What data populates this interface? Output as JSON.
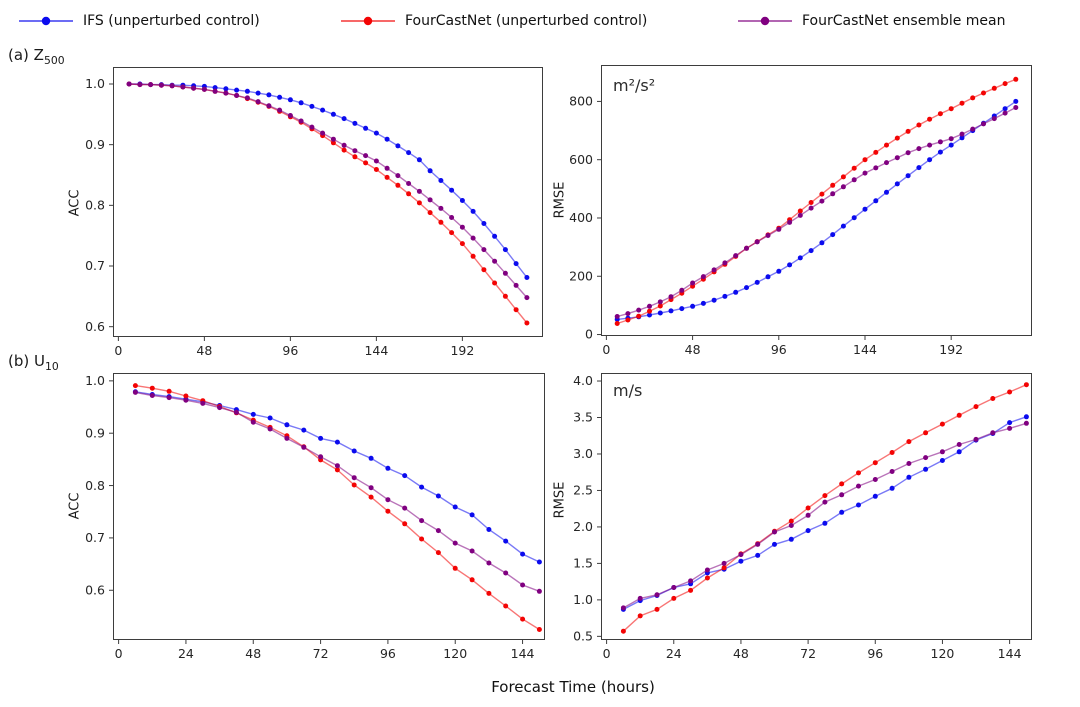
{
  "legend": {
    "items": [
      {
        "label": "IFS (unperturbed control)",
        "color": "#0b0bee"
      },
      {
        "label": "FourCastNet (unperturbed control)",
        "color": "#f30404"
      },
      {
        "label": "FourCastNet ensemble mean",
        "color": "#800080"
      }
    ]
  },
  "chart_data": {
    "type": "line",
    "xlabel": "Forecast Time (hours)",
    "legend_position": "top",
    "grid": false,
    "marker_interval_hours": 6,
    "panels": [
      {
        "id": "z500-acc",
        "panel_label": {
          "text": "(a) Z",
          "sub": "500"
        },
        "ylabel": "ACC",
        "annotation": "",
        "xlim": [
          -3,
          237
        ],
        "ylim": [
          0.583,
          1.028
        ],
        "x_tick_values": [
          0,
          48,
          96,
          144,
          192
        ],
        "x_tick_labels": [
          "0",
          "48",
          "96",
          "144",
          "192"
        ],
        "y_tick_values": [
          0.6,
          0.7,
          0.8,
          0.9,
          1.0
        ],
        "y_tick_labels": [
          "0.6",
          "0.7",
          "0.8",
          "0.9",
          "1.0"
        ],
        "x": [
          6,
          12,
          18,
          24,
          30,
          36,
          42,
          48,
          54,
          60,
          66,
          72,
          78,
          84,
          90,
          96,
          102,
          108,
          114,
          120,
          126,
          132,
          138,
          144,
          150,
          156,
          162,
          168,
          174,
          180,
          186,
          192,
          198,
          204,
          210,
          216,
          222,
          228
        ],
        "series": [
          {
            "id": "ifs",
            "name": "IFS (unperturbed control)",
            "color": "#0b0bee",
            "values": [
              1.0,
              1.0,
              0.999,
              0.999,
              0.998,
              0.998,
              0.997,
              0.996,
              0.994,
              0.992,
              0.99,
              0.988,
              0.985,
              0.982,
              0.978,
              0.974,
              0.969,
              0.963,
              0.957,
              0.95,
              0.943,
              0.935,
              0.927,
              0.919,
              0.909,
              0.898,
              0.887,
              0.875,
              0.857,
              0.841,
              0.825,
              0.808,
              0.79,
              0.77,
              0.749,
              0.727,
              0.704,
              0.681
            ]
          },
          {
            "id": "fourcastnet",
            "name": "FourCastNet (unperturbed control)",
            "color": "#f30404",
            "values": [
              1.0,
              0.999,
              0.999,
              0.998,
              0.997,
              0.995,
              0.993,
              0.991,
              0.988,
              0.985,
              0.981,
              0.976,
              0.97,
              0.963,
              0.955,
              0.946,
              0.937,
              0.926,
              0.915,
              0.903,
              0.891,
              0.88,
              0.87,
              0.859,
              0.846,
              0.833,
              0.819,
              0.804,
              0.788,
              0.772,
              0.755,
              0.737,
              0.716,
              0.694,
              0.672,
              0.65,
              0.628,
              0.606
            ]
          },
          {
            "id": "ensemble-mean",
            "name": "FourCastNet ensemble mean",
            "color": "#800080",
            "values": [
              1.0,
              0.999,
              0.999,
              0.998,
              0.997,
              0.995,
              0.993,
              0.991,
              0.988,
              0.985,
              0.981,
              0.977,
              0.971,
              0.964,
              0.957,
              0.948,
              0.939,
              0.929,
              0.919,
              0.909,
              0.899,
              0.89,
              0.882,
              0.873,
              0.861,
              0.849,
              0.836,
              0.823,
              0.809,
              0.795,
              0.78,
              0.764,
              0.746,
              0.727,
              0.708,
              0.688,
              0.668,
              0.648
            ]
          }
        ]
      },
      {
        "id": "z500-rmse",
        "panel_label": {
          "text": "",
          "sub": ""
        },
        "ylabel": "RMSE",
        "annotation": "m²/s²",
        "xlim": [
          -3,
          237
        ],
        "ylim": [
          -5,
          925
        ],
        "x_tick_values": [
          0,
          48,
          96,
          144,
          192
        ],
        "x_tick_labels": [
          "0",
          "48",
          "96",
          "144",
          "192"
        ],
        "y_tick_values": [
          0,
          200,
          400,
          600,
          800
        ],
        "y_tick_labels": [
          "0",
          "200",
          "400",
          "600",
          "800"
        ],
        "x": [
          6,
          12,
          18,
          24,
          30,
          36,
          42,
          48,
          54,
          60,
          66,
          72,
          78,
          84,
          90,
          96,
          102,
          108,
          114,
          120,
          126,
          132,
          138,
          144,
          150,
          156,
          162,
          168,
          174,
          180,
          186,
          192,
          198,
          204,
          210,
          216,
          222,
          228
        ],
        "series": [
          {
            "id": "ifs",
            "name": "IFS (unperturbed control)",
            "color": "#0b0bee",
            "values": [
              52,
              56,
              61,
              67,
              74,
              81,
              89,
              97,
              107,
              118,
              131,
              145,
              161,
              179,
              198,
              217,
              239,
              263,
              288,
              315,
              343,
              372,
              401,
              430,
              459,
              488,
              517,
              545,
              573,
              600,
              626,
              650,
              675,
              700,
              725,
              750,
              775,
              800
            ]
          },
          {
            "id": "fourcastnet",
            "name": "FourCastNet (unperturbed control)",
            "color": "#f30404",
            "values": [
              38,
              50,
              63,
              80,
              98,
              120,
              142,
              166,
              190,
              215,
              241,
              268,
              296,
              319,
              342,
              365,
              394,
              424,
              453,
              482,
              512,
              541,
              571,
              600,
              625,
              650,
              674,
              697,
              719,
              739,
              758,
              775,
              794,
              812,
              829,
              845,
              861,
              876
            ]
          },
          {
            "id": "ensemble-mean",
            "name": "FourCastNet ensemble mean",
            "color": "#800080",
            "values": [
              62,
              72,
              84,
              97,
              112,
              130,
              152,
              177,
              199,
              222,
              246,
              271,
              296,
              318,
              340,
              361,
              385,
              409,
              434,
              458,
              483,
              507,
              531,
              554,
              572,
              590,
              607,
              624,
              638,
              650,
              661,
              672,
              688,
              705,
              723,
              741,
              760,
              779
            ]
          }
        ]
      },
      {
        "id": "u10-acc",
        "panel_label": {
          "text": "(b) U",
          "sub": "10"
        },
        "ylabel": "ACC",
        "annotation": "",
        "xlim": [
          -2,
          152
        ],
        "ylim": [
          0.505,
          1.015
        ],
        "x_tick_values": [
          0,
          24,
          48,
          72,
          96,
          120,
          144
        ],
        "x_tick_labels": [
          "0",
          "24",
          "48",
          "72",
          "96",
          "120",
          "144"
        ],
        "y_tick_values": [
          0.6,
          0.7,
          0.8,
          0.9,
          1.0
        ],
        "y_tick_labels": [
          "0.6",
          "0.7",
          "0.8",
          "0.9",
          "1.0"
        ],
        "x": [
          6,
          12,
          18,
          24,
          30,
          36,
          42,
          48,
          54,
          60,
          66,
          72,
          78,
          84,
          90,
          96,
          102,
          108,
          114,
          120,
          126,
          132,
          138,
          144,
          150
        ],
        "series": [
          {
            "id": "ifs",
            "name": "IFS (unperturbed control)",
            "color": "#0b0bee",
            "values": [
              0.979,
              0.974,
              0.97,
              0.965,
              0.96,
              0.953,
              0.945,
              0.936,
              0.929,
              0.916,
              0.906,
              0.89,
              0.883,
              0.866,
              0.852,
              0.833,
              0.819,
              0.797,
              0.78,
              0.759,
              0.744,
              0.716,
              0.694,
              0.669,
              0.654
            ]
          },
          {
            "id": "fourcastnet",
            "name": "FourCastNet (unperturbed control)",
            "color": "#f30404",
            "values": [
              0.991,
              0.986,
              0.98,
              0.971,
              0.962,
              0.951,
              0.939,
              0.925,
              0.911,
              0.895,
              0.874,
              0.849,
              0.83,
              0.801,
              0.778,
              0.751,
              0.727,
              0.698,
              0.672,
              0.642,
              0.62,
              0.594,
              0.57,
              0.545,
              0.525
            ]
          },
          {
            "id": "ensemble-mean",
            "name": "FourCastNet ensemble mean",
            "color": "#800080",
            "values": [
              0.978,
              0.972,
              0.968,
              0.963,
              0.957,
              0.949,
              0.94,
              0.921,
              0.908,
              0.89,
              0.873,
              0.855,
              0.838,
              0.815,
              0.796,
              0.773,
              0.757,
              0.733,
              0.714,
              0.69,
              0.675,
              0.652,
              0.633,
              0.61,
              0.598
            ]
          }
        ]
      },
      {
        "id": "u10-rmse",
        "panel_label": {
          "text": "",
          "sub": ""
        },
        "ylabel": "RMSE",
        "annotation": "m/s",
        "xlim": [
          -2,
          152
        ],
        "ylim": [
          0.45,
          4.11
        ],
        "x_tick_values": [
          0,
          24,
          48,
          72,
          96,
          120,
          144
        ],
        "x_tick_labels": [
          "0",
          "24",
          "48",
          "72",
          "96",
          "120",
          "144"
        ],
        "y_tick_values": [
          0.5,
          1.0,
          1.5,
          2.0,
          2.5,
          3.0,
          3.5,
          4.0
        ],
        "y_tick_labels": [
          "0.5",
          "1.0",
          "1.5",
          "2.0",
          "2.5",
          "3.0",
          "3.5",
          "4.0"
        ],
        "x": [
          6,
          12,
          18,
          24,
          30,
          36,
          42,
          48,
          54,
          60,
          66,
          72,
          78,
          84,
          90,
          96,
          102,
          108,
          114,
          120,
          126,
          132,
          138,
          144,
          150
        ],
        "series": [
          {
            "id": "ifs",
            "name": "IFS (unperturbed control)",
            "color": "#0b0bee",
            "values": [
              0.87,
              0.99,
              1.06,
              1.17,
              1.22,
              1.37,
              1.42,
              1.53,
              1.61,
              1.76,
              1.83,
              1.95,
              2.05,
              2.2,
              2.3,
              2.42,
              2.53,
              2.68,
              2.79,
              2.91,
              3.03,
              3.19,
              3.28,
              3.43,
              3.51
            ]
          },
          {
            "id": "fourcastnet",
            "name": "FourCastNet (unperturbed control)",
            "color": "#f30404",
            "values": [
              0.57,
              0.78,
              0.87,
              1.02,
              1.13,
              1.3,
              1.44,
              1.63,
              1.77,
              1.94,
              2.08,
              2.26,
              2.43,
              2.59,
              2.74,
              2.88,
              3.02,
              3.17,
              3.29,
              3.41,
              3.53,
              3.65,
              3.76,
              3.85,
              3.95
            ]
          },
          {
            "id": "ensemble-mean",
            "name": "FourCastNet ensemble mean",
            "color": "#800080",
            "values": [
              0.89,
              1.02,
              1.07,
              1.17,
              1.26,
              1.41,
              1.5,
              1.62,
              1.76,
              1.93,
              2.02,
              2.16,
              2.34,
              2.44,
              2.56,
              2.65,
              2.76,
              2.87,
              2.95,
              3.03,
              3.13,
              3.2,
              3.29,
              3.35,
              3.42
            ]
          }
        ]
      }
    ]
  }
}
